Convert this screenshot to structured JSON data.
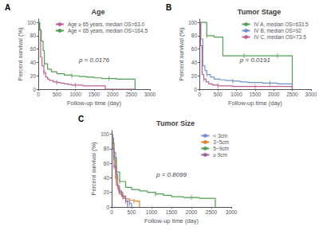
{
  "chart_data": [
    {
      "type": "line",
      "line_style": "steps-post",
      "title": "Age",
      "panel_label": "A",
      "xlabel": "Follow-up time (day)",
      "ylabel": "Percent survival (%)",
      "xlim": [
        0,
        3000
      ],
      "ylim": [
        0,
        105
      ],
      "xticks": [
        0,
        500,
        1000,
        1500,
        2000,
        2500,
        3000
      ],
      "yticks": [
        0,
        20,
        40,
        60,
        80,
        100
      ],
      "grid": false,
      "legend": "upper right",
      "annotations": [
        {
          "text": "p = 0.0176",
          "x": 1500,
          "y": 44
        }
      ],
      "series": [
        {
          "name": "Age ≥ 65 years, median OS=63.0",
          "color": "#C06090",
          "marker": "|",
          "x": [
            0,
            30,
            63,
            63,
            100,
            150,
            200,
            250,
            300,
            400,
            500,
            600,
            700,
            800,
            900,
            1000,
            1200,
            1500,
            1800,
            2600,
            2600
          ],
          "values": [
            100,
            90,
            80,
            48,
            35,
            25,
            18,
            15,
            13,
            11,
            10,
            9,
            8,
            7,
            6,
            6,
            5,
            5,
            0,
            0,
            0
          ],
          "censor_x": [
            150,
            500,
            1000
          ],
          "censor_y": [
            25,
            10,
            6
          ]
        },
        {
          "name": "Age < 65 years, median OS=164.5",
          "color": "#50A050",
          "marker": "|",
          "x": [
            0,
            40,
            80,
            130,
            164,
            164,
            250,
            350,
            500,
            700,
            900,
            1100,
            1300,
            1500,
            1700,
            1900,
            2100,
            2400,
            2600,
            2600
          ],
          "values": [
            100,
            88,
            72,
            58,
            50,
            38,
            30,
            26,
            23,
            21,
            20,
            19,
            18,
            17,
            16,
            16,
            15,
            15,
            15,
            0
          ],
          "censor_x": [
            164,
            900,
            1900
          ],
          "censor_y": [
            38,
            20,
            16
          ]
        }
      ]
    },
    {
      "type": "line",
      "line_style": "steps-post",
      "title": "Tumor Stage",
      "panel_label": "B",
      "xlabel": "Follow-up time (day)",
      "ylabel": "Percent survival (%)",
      "xlim": [
        0,
        3000
      ],
      "ylim": [
        0,
        105
      ],
      "xticks": [
        0,
        500,
        1000,
        1500,
        2000,
        2500,
        3000
      ],
      "yticks": [
        0,
        20,
        40,
        60,
        80,
        100
      ],
      "grid": false,
      "legend": "upper right",
      "annotations": [
        {
          "text": "p = 0.0191",
          "x": 1500,
          "y": 44
        }
      ],
      "series": [
        {
          "name": "IV A, median OS=633.5",
          "color": "#50A050",
          "marker": "|",
          "x": [
            0,
            50,
            100,
            200,
            400,
            633,
            633,
            900,
            1200,
            1500,
            1800,
            2100,
            2400,
            2500,
            2500
          ],
          "values": [
            100,
            100,
            100,
            80,
            78,
            78,
            50,
            50,
            50,
            50,
            50,
            50,
            50,
            50,
            0
          ],
          "censor_x": [
            200,
            1200,
            2100
          ],
          "censor_y": [
            80,
            50,
            50
          ]
        },
        {
          "name": "IV B, median OS=92",
          "color": "#7090D0",
          "marker": "|",
          "x": [
            0,
            40,
            92,
            92,
            150,
            200,
            300,
            400,
            550,
            700,
            900,
            1100,
            1300,
            1500,
            1700,
            1900,
            2100,
            2400,
            2500,
            2500
          ],
          "values": [
            100,
            75,
            55,
            35,
            28,
            22,
            18,
            15,
            14,
            13,
            12,
            11,
            10,
            10,
            9,
            9,
            8,
            8,
            8,
            0
          ],
          "censor_x": [
            200,
            900,
            1900
          ],
          "censor_y": [
            22,
            12,
            9
          ]
        },
        {
          "name": "IV C, median OS=73.5",
          "color": "#C06090",
          "marker": "|",
          "x": [
            0,
            30,
            73,
            73,
            120,
            180,
            250,
            350,
            500,
            700,
            900,
            1200,
            1500,
            1800,
            2400,
            2500,
            2500
          ],
          "values": [
            100,
            65,
            45,
            22,
            15,
            11,
            8,
            6,
            5,
            5,
            4,
            4,
            4,
            4,
            4,
            4,
            0
          ],
          "censor_x": [
            120,
            500,
            1500
          ],
          "censor_y": [
            15,
            5,
            4
          ]
        }
      ]
    },
    {
      "type": "line",
      "line_style": "steps-post",
      "title": "Tumor Size",
      "panel_label": "C",
      "xlabel": "Follow-up time (day)",
      "ylabel": "Percent survival (%)",
      "xlim": [
        0,
        3000
      ],
      "ylim": [
        0,
        105
      ],
      "xticks": [
        0,
        500,
        1000,
        1500,
        2000,
        2500,
        3000
      ],
      "yticks": [
        0,
        20,
        40,
        60,
        80,
        100
      ],
      "grid": false,
      "legend": "upper right",
      "annotations": [
        {
          "text": "p = 0.8099",
          "x": 1500,
          "y": 44
        }
      ],
      "series": [
        {
          "name": "< 3cm",
          "color": "#7090D0",
          "marker": "|",
          "x": [
            0,
            20,
            50,
            100,
            150,
            200,
            280,
            350,
            450,
            500,
            500
          ],
          "values": [
            100,
            95,
            75,
            45,
            28,
            20,
            12,
            8,
            5,
            0,
            0
          ],
          "censor_x": [
            50,
            200,
            450
          ],
          "censor_y": [
            75,
            20,
            5
          ]
        },
        {
          "name": "3~5cm",
          "color": "#E08030",
          "marker": "|",
          "x": [
            0,
            20,
            50,
            100,
            150,
            200,
            280,
            350,
            450,
            560,
            650,
            700,
            700
          ],
          "values": [
            100,
            90,
            65,
            40,
            25,
            18,
            13,
            11,
            9,
            8,
            8,
            0,
            0
          ],
          "censor_x": [
            100,
            280,
            560
          ],
          "censor_y": [
            40,
            13,
            8
          ]
        },
        {
          "name": "5~9cm",
          "color": "#50A050",
          "marker": "|",
          "x": [
            0,
            20,
            60,
            120,
            200,
            350,
            500,
            700,
            900,
            1100,
            1300,
            1500,
            1800,
            2000,
            2200,
            2500,
            2600,
            2600
          ],
          "values": [
            100,
            88,
            68,
            48,
            35,
            27,
            24,
            22,
            20,
            18,
            16,
            14,
            13,
            13,
            12,
            12,
            12,
            0
          ],
          "censor_x": [
            200,
            1100,
            2000
          ],
          "censor_y": [
            35,
            18,
            13
          ]
        },
        {
          "name": "≥ 9cm",
          "color": "#A060A0",
          "marker": "|",
          "x": [
            0,
            20,
            60,
            120,
            180,
            250,
            350,
            400,
            400
          ],
          "values": [
            100,
            80,
            55,
            30,
            22,
            15,
            8,
            0,
            0
          ],
          "censor_x": [
            60,
            180,
            350
          ],
          "censor_y": [
            55,
            22,
            8
          ]
        }
      ]
    }
  ]
}
